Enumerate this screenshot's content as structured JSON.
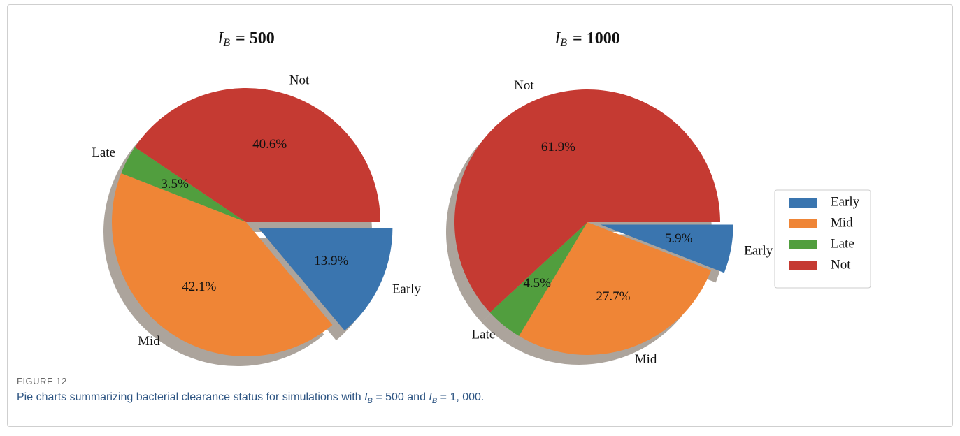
{
  "chart_data": [
    {
      "type": "pie",
      "title_variable": "I",
      "title_subscript": "B",
      "title_value": "= 500",
      "categories": [
        "Early",
        "Mid",
        "Late",
        "Not"
      ],
      "values": [
        13.9,
        42.1,
        3.5,
        40.6
      ],
      "value_labels": [
        "13.9%",
        "42.1%",
        "3.5%",
        "40.6%"
      ],
      "colors": [
        "#3a75af",
        "#ef8536",
        "#519e3e",
        "#c53a32"
      ],
      "explode": [
        0.1,
        0,
        0,
        0
      ],
      "startangle": 0,
      "counterclock": false,
      "shadow": true
    },
    {
      "type": "pie",
      "title_variable": "I",
      "title_subscript": "B",
      "title_value": "= 1000",
      "categories": [
        "Early",
        "Mid",
        "Late",
        "Not"
      ],
      "values": [
        5.9,
        27.7,
        4.5,
        61.9
      ],
      "value_labels": [
        "5.9%",
        "27.7%",
        "4.5%",
        "61.9%"
      ],
      "colors": [
        "#3a75af",
        "#ef8536",
        "#519e3e",
        "#c53a32"
      ],
      "explode": [
        0.1,
        0,
        0,
        0
      ],
      "startangle": 0,
      "counterclock": false,
      "shadow": true,
      "legend": "right"
    }
  ],
  "figure_label": "FIGURE 12",
  "caption": [
    "Pie charts summarizing bacterial clearance status for simulations with ",
    "I",
    "B",
    " = 500 and ",
    "I",
    "B",
    " = 1, 000."
  ]
}
